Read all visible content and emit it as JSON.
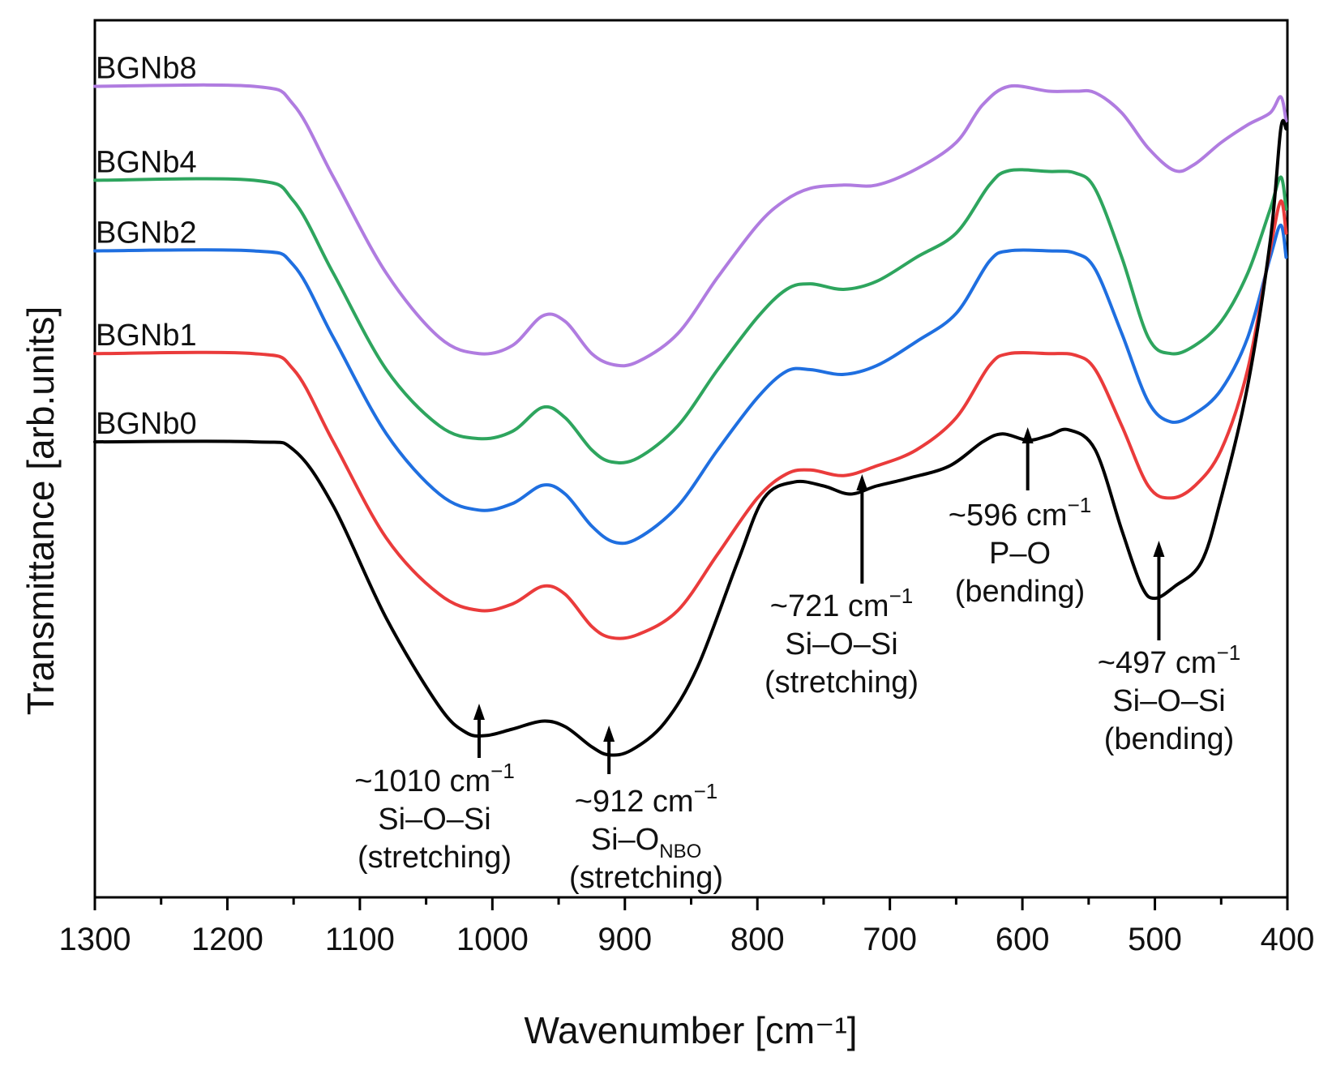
{
  "chart_data": {
    "type": "line",
    "title": "",
    "xlabel": "Wavenumber [cm⁻¹]",
    "ylabel": "Transmittance [arb.units]",
    "xlim": [
      1300,
      400
    ],
    "x_reversed": true,
    "ylim": [
      0,
      1
    ],
    "x_ticks": [
      1300,
      1200,
      1100,
      1000,
      900,
      800,
      700,
      600,
      500,
      400
    ],
    "x_tick_labels": [
      "1300",
      "1200",
      "1100",
      "1000",
      "900",
      "800",
      "700",
      "600",
      "500",
      "400"
    ],
    "y_ticks": [],
    "grid": false,
    "series": [
      {
        "name": "BGNb8",
        "color": "#b07ce0",
        "points": [
          [
            1300,
            0.953
          ],
          [
            1180,
            0.953
          ],
          [
            1150,
            0.93
          ],
          [
            1120,
            0.84
          ],
          [
            1080,
            0.72
          ],
          [
            1040,
            0.64
          ],
          [
            1010,
            0.62
          ],
          [
            985,
            0.63
          ],
          [
            962,
            0.667
          ],
          [
            945,
            0.66
          ],
          [
            925,
            0.62
          ],
          [
            908,
            0.606
          ],
          [
            890,
            0.61
          ],
          [
            860,
            0.645
          ],
          [
            830,
            0.715
          ],
          [
            800,
            0.78
          ],
          [
            780,
            0.81
          ],
          [
            760,
            0.826
          ],
          [
            735,
            0.83
          ],
          [
            710,
            0.83
          ],
          [
            680,
            0.85
          ],
          [
            650,
            0.883
          ],
          [
            630,
            0.93
          ],
          [
            610,
            0.953
          ],
          [
            580,
            0.947
          ],
          [
            560,
            0.947
          ],
          [
            545,
            0.945
          ],
          [
            525,
            0.92
          ],
          [
            505,
            0.876
          ],
          [
            485,
            0.848
          ],
          [
            470,
            0.856
          ],
          [
            450,
            0.883
          ],
          [
            430,
            0.905
          ],
          [
            413,
            0.92
          ],
          [
            405,
            0.94
          ],
          [
            401,
            0.91
          ]
        ]
      },
      {
        "name": "BGNb4",
        "color": "#2ea55e",
        "points": [
          [
            1300,
            0.836
          ],
          [
            1180,
            0.836
          ],
          [
            1150,
            0.81
          ],
          [
            1120,
            0.72
          ],
          [
            1080,
            0.6
          ],
          [
            1040,
            0.53
          ],
          [
            1010,
            0.514
          ],
          [
            985,
            0.523
          ],
          [
            962,
            0.553
          ],
          [
            945,
            0.54
          ],
          [
            925,
            0.5
          ],
          [
            910,
            0.485
          ],
          [
            890,
            0.49
          ],
          [
            860,
            0.53
          ],
          [
            830,
            0.6
          ],
          [
            800,
            0.665
          ],
          [
            778,
            0.7
          ],
          [
            760,
            0.707
          ],
          [
            735,
            0.7
          ],
          [
            710,
            0.71
          ],
          [
            680,
            0.74
          ],
          [
            650,
            0.77
          ],
          [
            625,
            0.83
          ],
          [
            610,
            0.848
          ],
          [
            580,
            0.847
          ],
          [
            560,
            0.845
          ],
          [
            545,
            0.825
          ],
          [
            525,
            0.74
          ],
          [
            505,
            0.64
          ],
          [
            488,
            0.62
          ],
          [
            470,
            0.63
          ],
          [
            450,
            0.66
          ],
          [
            430,
            0.72
          ],
          [
            413,
            0.8
          ],
          [
            405,
            0.84
          ],
          [
            401,
            0.8
          ]
        ]
      },
      {
        "name": "BGNb2",
        "color": "#1f6fe0",
        "points": [
          [
            1300,
            0.748
          ],
          [
            1180,
            0.748
          ],
          [
            1150,
            0.73
          ],
          [
            1120,
            0.64
          ],
          [
            1080,
            0.52
          ],
          [
            1040,
            0.445
          ],
          [
            1010,
            0.425
          ],
          [
            985,
            0.433
          ],
          [
            962,
            0.456
          ],
          [
            945,
            0.445
          ],
          [
            925,
            0.405
          ],
          [
            908,
            0.385
          ],
          [
            890,
            0.39
          ],
          [
            860,
            0.43
          ],
          [
            830,
            0.5
          ],
          [
            800,
            0.565
          ],
          [
            778,
            0.598
          ],
          [
            760,
            0.6
          ],
          [
            735,
            0.594
          ],
          [
            710,
            0.605
          ],
          [
            680,
            0.635
          ],
          [
            650,
            0.67
          ],
          [
            625,
            0.735
          ],
          [
            610,
            0.748
          ],
          [
            580,
            0.748
          ],
          [
            560,
            0.745
          ],
          [
            545,
            0.725
          ],
          [
            525,
            0.645
          ],
          [
            505,
            0.56
          ],
          [
            488,
            0.535
          ],
          [
            470,
            0.545
          ],
          [
            450,
            0.575
          ],
          [
            430,
            0.64
          ],
          [
            413,
            0.74
          ],
          [
            405,
            0.78
          ],
          [
            401,
            0.74
          ]
        ]
      },
      {
        "name": "BGNb1",
        "color": "#ea3b3b",
        "points": [
          [
            1300,
            0.62
          ],
          [
            1180,
            0.62
          ],
          [
            1150,
            0.6
          ],
          [
            1120,
            0.51
          ],
          [
            1080,
            0.39
          ],
          [
            1040,
            0.32
          ],
          [
            1010,
            0.3
          ],
          [
            985,
            0.308
          ],
          [
            962,
            0.33
          ],
          [
            945,
            0.32
          ],
          [
            925,
            0.28
          ],
          [
            910,
            0.266
          ],
          [
            890,
            0.27
          ],
          [
            860,
            0.3
          ],
          [
            830,
            0.37
          ],
          [
            800,
            0.44
          ],
          [
            778,
            0.47
          ],
          [
            760,
            0.475
          ],
          [
            735,
            0.468
          ],
          [
            710,
            0.48
          ],
          [
            680,
            0.5
          ],
          [
            650,
            0.54
          ],
          [
            625,
            0.605
          ],
          [
            610,
            0.62
          ],
          [
            580,
            0.62
          ],
          [
            560,
            0.618
          ],
          [
            545,
            0.6
          ],
          [
            525,
            0.53
          ],
          [
            505,
            0.455
          ],
          [
            488,
            0.44
          ],
          [
            470,
            0.455
          ],
          [
            450,
            0.5
          ],
          [
            430,
            0.6
          ],
          [
            413,
            0.75
          ],
          [
            405,
            0.81
          ],
          [
            401,
            0.77
          ]
        ]
      },
      {
        "name": "BGNb0",
        "color": "#000000",
        "points": [
          [
            1300,
            0.51
          ],
          [
            1180,
            0.51
          ],
          [
            1150,
            0.5
          ],
          [
            1120,
            0.43
          ],
          [
            1080,
            0.29
          ],
          [
            1040,
            0.18
          ],
          [
            1020,
            0.148
          ],
          [
            1005,
            0.144
          ],
          [
            985,
            0.152
          ],
          [
            962,
            0.162
          ],
          [
            945,
            0.155
          ],
          [
            925,
            0.13
          ],
          [
            912,
            0.12
          ],
          [
            895,
            0.126
          ],
          [
            870,
            0.16
          ],
          [
            845,
            0.23
          ],
          [
            815,
            0.36
          ],
          [
            795,
            0.44
          ],
          [
            772,
            0.46
          ],
          [
            750,
            0.455
          ],
          [
            730,
            0.445
          ],
          [
            710,
            0.455
          ],
          [
            685,
            0.465
          ],
          [
            655,
            0.48
          ],
          [
            630,
            0.51
          ],
          [
            615,
            0.52
          ],
          [
            596,
            0.512
          ],
          [
            580,
            0.518
          ],
          [
            565,
            0.525
          ],
          [
            545,
            0.5
          ],
          [
            525,
            0.4
          ],
          [
            510,
            0.33
          ],
          [
            500,
            0.315
          ],
          [
            485,
            0.33
          ],
          [
            465,
            0.36
          ],
          [
            450,
            0.44
          ],
          [
            430,
            0.58
          ],
          [
            413,
            0.76
          ],
          [
            405,
            0.9
          ],
          [
            401,
            0.9
          ]
        ]
      }
    ],
    "annotations": [
      {
        "x": 1010,
        "wavenumber": "~1010 cm",
        "sup": "−1",
        "line2_base": "Si–O–Si",
        "line2_sub": "",
        "line3": "(stretching)"
      },
      {
        "x": 912,
        "wavenumber": "~912 cm",
        "sup": "−1",
        "line2_base": "Si–O",
        "line2_sub": "NBO",
        "line3": "(stretching)"
      },
      {
        "x": 721,
        "wavenumber": "~721 cm",
        "sup": "−1",
        "line2_base": "Si–O–Si",
        "line2_sub": "",
        "line3": "(stretching)"
      },
      {
        "x": 596,
        "wavenumber": "~596 cm",
        "sup": "−1",
        "line2_base": "P–O",
        "line2_sub": "",
        "line3": "(bending)"
      },
      {
        "x": 497,
        "wavenumber": "~497 cm",
        "sup": "−1",
        "line2_base": "Si–O–Si",
        "line2_sub": "",
        "line3": "(bending)"
      }
    ]
  }
}
